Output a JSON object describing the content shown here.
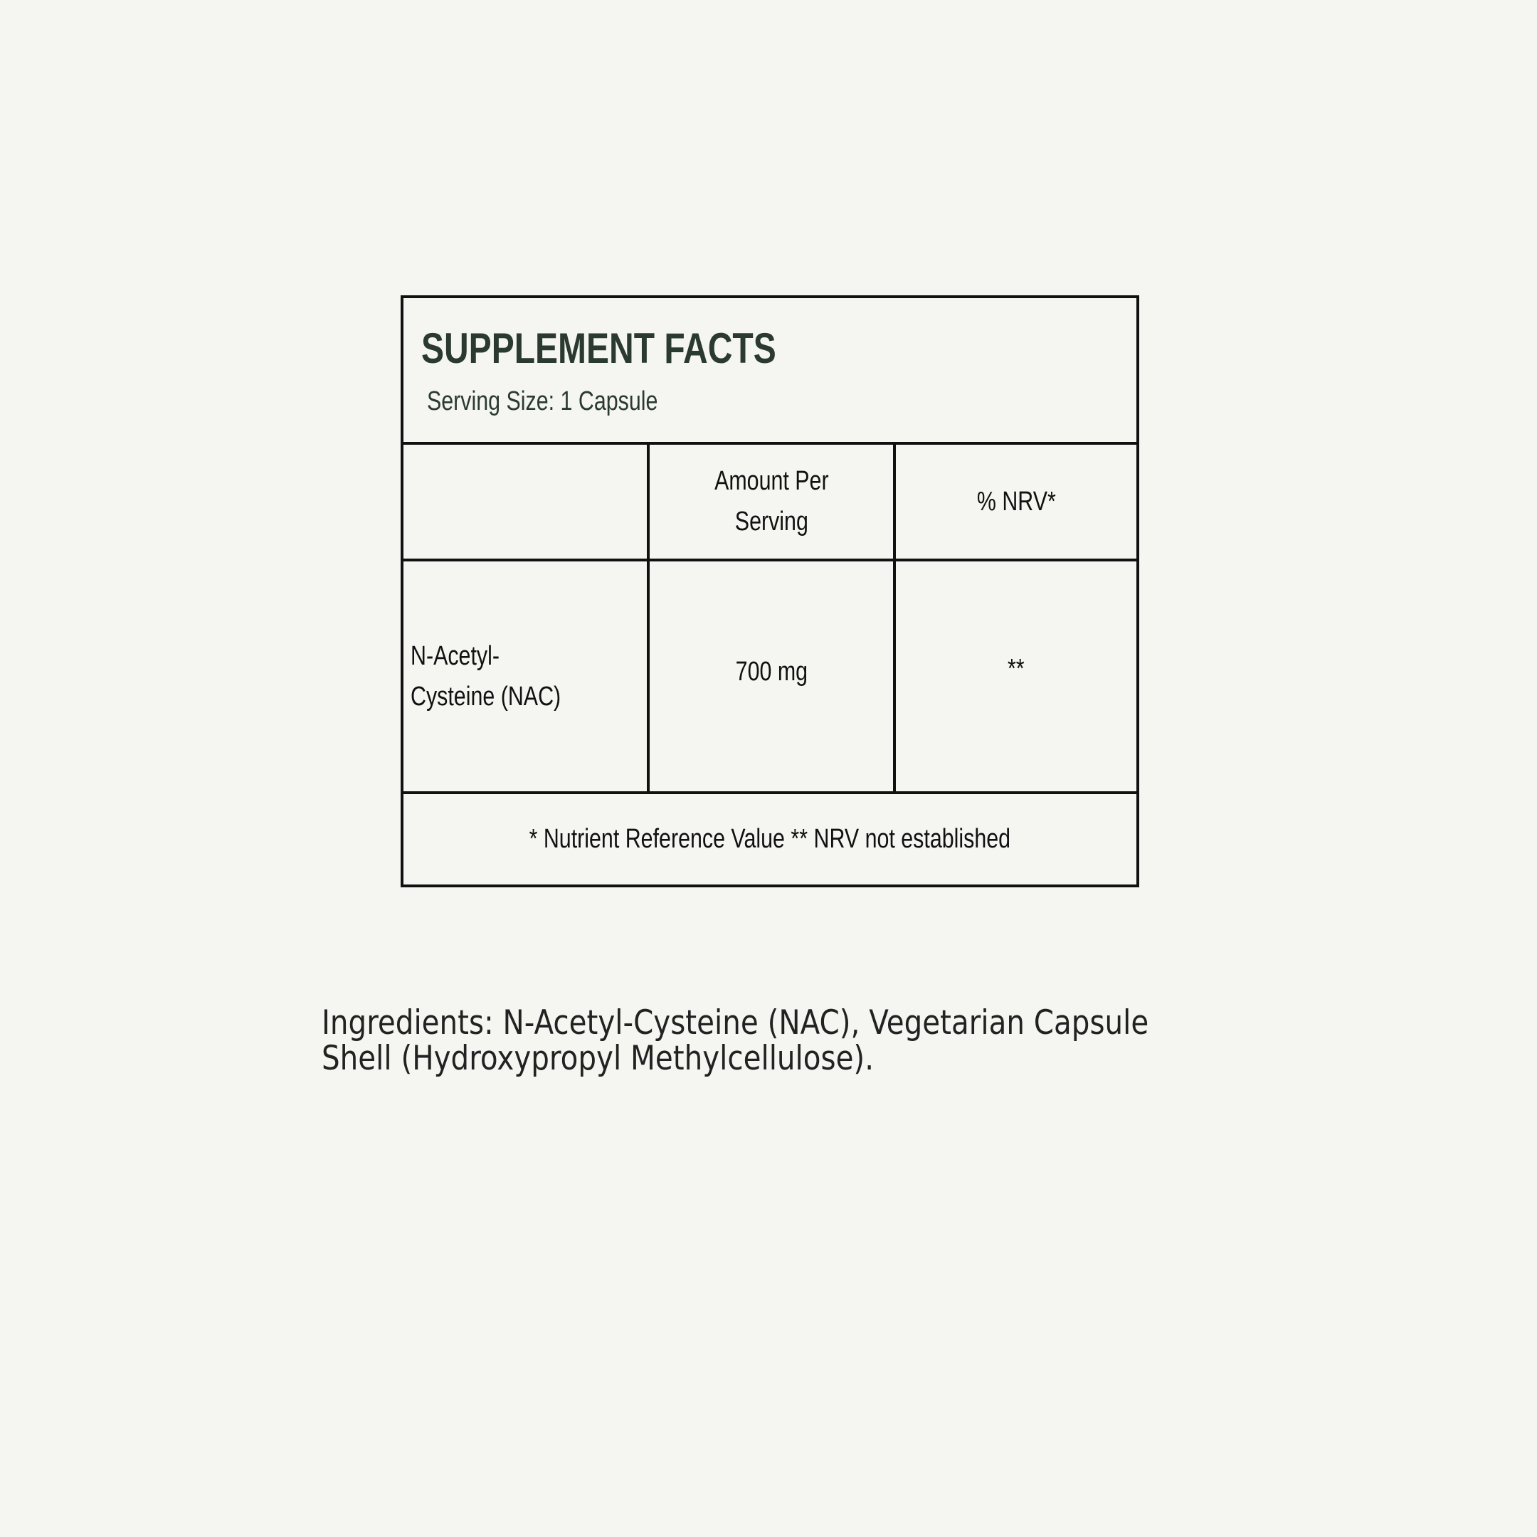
{
  "panel": {
    "title": "SUPPLEMENT FACTS",
    "serving_size": "Serving Size: 1 Capsule",
    "table": {
      "headers": [
        "",
        "Amount Per Serving",
        "% NRV*"
      ],
      "header_amount_lines": [
        "Amount Per",
        "Serving"
      ],
      "rows": [
        {
          "name_lines": [
            "N-Acetyl-",
            "Cysteine (NAC)"
          ],
          "amount": "700 mg",
          "nrv": "**"
        }
      ]
    },
    "footnote": "* Nutrient Reference Value  ** NRV not established"
  },
  "ingredients": {
    "line1": "Ingredients: N-Acetyl-Cysteine (NAC), Vegetarian Capsule",
    "line2": "Shell (Hydroxypropyl Methylcellulose)."
  },
  "colors": {
    "background": "#f5f5f1",
    "title": "#2b3a31",
    "border": "#111111"
  }
}
